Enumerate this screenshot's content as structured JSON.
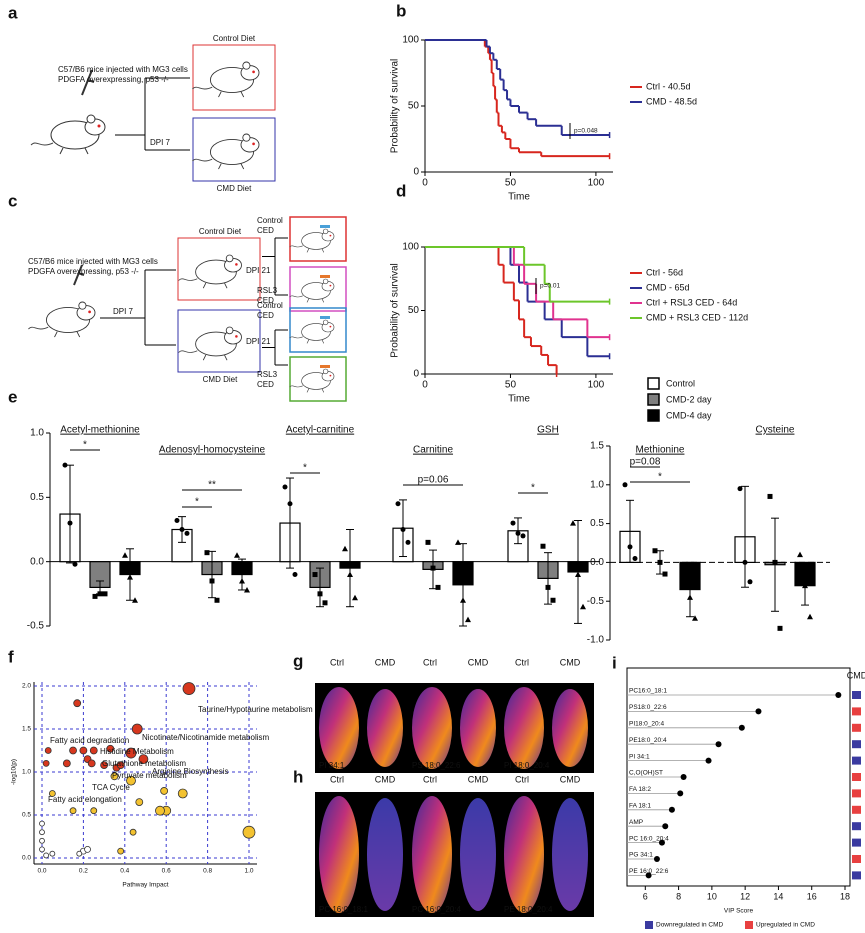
{
  "panel_labels": [
    "a",
    "b",
    "c",
    "d",
    "e",
    "f",
    "g",
    "h",
    "i"
  ],
  "diagram_a": {
    "injection": [
      "C57/B6 mice injected with MG3 cells",
      "PDGFA overexpressing, p53 -/-"
    ],
    "dpi": "DPI 7",
    "diets": [
      "Control Diet",
      "CMD Diet"
    ]
  },
  "diagram_c": {
    "injection": [
      "C57/B6 mice injected with MG3 cells",
      "PDGFA overexpressing, p53 -/-"
    ],
    "dpi": "DPI 7",
    "diets": [
      "Control Diet",
      "CMD Diet"
    ],
    "dpi2": "DPI 21",
    "treatments": [
      [
        "Control",
        "CED"
      ],
      [
        "RSL3",
        "CED"
      ],
      [
        "Control",
        "CED"
      ],
      [
        "RSL3",
        "CED"
      ]
    ]
  },
  "images": {
    "columns": [
      "Ctrl",
      "CMD"
    ],
    "g_labels": [
      "PI 34:1",
      "PS 18:0_22:6",
      "PI 18:0_20:4"
    ],
    "h_labels": [
      "PC 16:0_18:1",
      "PC 16:0_20:4",
      "PE 18:0_20:4"
    ]
  },
  "chart_data": [
    {
      "type": "survival",
      "xlabel": "Time",
      "ylabel": "Probability of survival",
      "xlim": [
        0,
        110
      ],
      "xticks": [
        0,
        50,
        100
      ],
      "ylim": [
        0,
        100
      ],
      "yticks": [
        0,
        50,
        100
      ],
      "series": [
        {
          "name": "Ctrl - 40.5d",
          "color": "#d7261e",
          "x": [
            0,
            35,
            37,
            38,
            39,
            40,
            41,
            42,
            43,
            45,
            47,
            50,
            55,
            68,
            108
          ],
          "values": [
            100,
            95,
            90,
            85,
            75,
            65,
            55,
            45,
            35,
            30,
            25,
            18,
            15,
            12,
            12
          ]
        },
        {
          "name": "CMD - 48.5d",
          "color": "#2b2f93",
          "x": [
            0,
            36,
            38,
            40,
            42,
            44,
            46,
            48,
            50,
            55,
            60,
            65,
            80,
            108
          ],
          "values": [
            100,
            95,
            90,
            85,
            78,
            70,
            62,
            55,
            50,
            45,
            40,
            35,
            28,
            28
          ]
        }
      ],
      "annotations": [
        "p=0.048"
      ]
    },
    {
      "type": "survival",
      "xlabel": "Time",
      "ylabel": "Probability of survival",
      "xlim": [
        0,
        110
      ],
      "xticks": [
        0,
        50,
        100
      ],
      "ylim": [
        0,
        100
      ],
      "yticks": [
        0,
        50,
        100
      ],
      "series": [
        {
          "name": "Ctrl - 56d",
          "color": "#d7261e",
          "x": [
            0,
            43,
            46,
            52,
            55,
            58,
            62,
            68,
            72,
            77
          ],
          "values": [
            100,
            86,
            72,
            58,
            43,
            29,
            22,
            15,
            7,
            0
          ]
        },
        {
          "name": "CMD - 65d",
          "color": "#2b2f93",
          "x": [
            0,
            50,
            55,
            60,
            70,
            80,
            95,
            108
          ],
          "values": [
            100,
            86,
            72,
            57,
            43,
            29,
            14,
            14
          ]
        },
        {
          "name": "Ctrl + RSL3 CED - 64d",
          "color": "#e0338f",
          "x": [
            0,
            52,
            58,
            65,
            75,
            95,
            108
          ],
          "values": [
            100,
            86,
            71,
            57,
            43,
            29,
            29
          ]
        },
        {
          "name": "CMD + RSL3 CED - 112d",
          "color": "#6cc62a",
          "x": [
            0,
            58,
            70,
            73,
            108
          ],
          "values": [
            100,
            86,
            71,
            57,
            57
          ]
        }
      ],
      "annotations": [
        "p=0.01"
      ]
    },
    {
      "type": "bar_group",
      "legend": [
        "Control",
        "CMD-2 day",
        "CMD-4 day"
      ],
      "colors": [
        "#ffffff",
        "#7f7f7f",
        "#000000"
      ],
      "ylim": [
        -0.5,
        1.0
      ],
      "yticks": [
        -0.5,
        {
          "value": 0,
          "label": "0.0"
        },
        0.5,
        {
          "value": 1,
          "label": "1.0"
        }
      ],
      "y2lim": [
        -1.0,
        1.5
      ],
      "y2ticks": [
        {
          "value": -1,
          "label": "-1.0"
        },
        -0.5,
        {
          "value": 0,
          "label": "0.0"
        },
        0.5,
        {
          "value": 1,
          "label": "1.0"
        },
        1.5
      ],
      "groups": [
        {
          "title": "Acetyl-methionine",
          "values": [
            0.37,
            -0.2,
            -0.1
          ],
          "errors": [
            0.38,
            0.05,
            0.2
          ],
          "points": [
            [
              0.75,
              0.3,
              -0.02
            ],
            [
              -0.27,
              -0.25,
              -0.25
            ],
            [
              0.05,
              -0.12,
              -0.3
            ]
          ],
          "annotations": [
            "*"
          ]
        },
        {
          "title": "Adenosyl-homocysteine",
          "values": [
            0.25,
            -0.1,
            -0.1
          ],
          "errors": [
            0.1,
            0.18,
            0.12
          ],
          "points": [
            [
              0.32,
              0.25,
              0.22
            ],
            [
              0.07,
              -0.15,
              -0.3
            ],
            [
              0.05,
              -0.15,
              -0.22
            ]
          ],
          "annotations": [
            "**",
            "*"
          ]
        },
        {
          "title": "Acetyl-carnitine",
          "values": [
            0.3,
            -0.2,
            -0.05
          ],
          "errors": [
            0.35,
            0.15,
            0.3
          ],
          "points": [
            [
              0.58,
              0.45,
              -0.1
            ],
            [
              -0.1,
              -0.25,
              -0.32
            ],
            [
              0.1,
              -0.1,
              -0.28
            ]
          ],
          "annotations": [
            "*"
          ]
        },
        {
          "title": "Carnitine",
          "values": [
            0.26,
            -0.06,
            -0.18
          ],
          "errors": [
            0.22,
            0.15,
            0.32
          ],
          "points": [
            [
              0.45,
              0.25,
              0.15
            ],
            [
              0.15,
              -0.05,
              -0.2
            ],
            [
              0.15,
              -0.3,
              -0.45
            ]
          ],
          "annotations": [
            "p=0.06"
          ]
        },
        {
          "title": "GSH",
          "values": [
            0.24,
            -0.13,
            -0.08
          ],
          "errors": [
            0.1,
            0.2,
            0.4
          ],
          "points": [
            [
              0.3,
              0.22,
              0.2
            ],
            [
              0.12,
              -0.2,
              -0.3
            ],
            [
              0.3,
              -0.1,
              -0.35
            ]
          ],
          "annotations": [
            "*"
          ]
        },
        {
          "title": "Methionine",
          "axis": "y2",
          "values": [
            0.4,
            0,
            -0.35
          ],
          "errors": [
            0.4,
            0.15,
            0.35
          ],
          "points": [
            [
              1.0,
              0.2,
              0.05
            ],
            [
              0.15,
              0.0,
              -0.15
            ],
            [
              -0.15,
              -0.45,
              -0.72
            ]
          ],
          "annotations": [
            "p=0.08",
            "*"
          ]
        },
        {
          "title": "Cysteine",
          "axis": "y2",
          "values": [
            0.33,
            -0.03,
            -0.3
          ],
          "errors": [
            0.65,
            0.6,
            0.25
          ],
          "points": [
            [
              0.95,
              0.0,
              -0.25
            ],
            [
              0.85,
              0.0,
              -0.85
            ],
            [
              0.1,
              -0.3,
              -0.7
            ]
          ],
          "annotations": []
        }
      ]
    },
    {
      "type": "bubble",
      "xlabel": "Pathway Impact",
      "ylabel": "-log10(p)",
      "grid": true,
      "xlim": [
        0,
        1
      ],
      "xticks": [
        {
          "value": 0,
          "label": "0.0"
        },
        0.2,
        0.4,
        0.6,
        0.8,
        {
          "value": 1,
          "label": "1.0"
        }
      ],
      "ylim": [
        0,
        2
      ],
      "yticks": [
        {
          "value": 0,
          "label": "0.0"
        },
        0.5,
        {
          "value": 1,
          "label": "1.0"
        },
        1.5,
        {
          "value": 2,
          "label": "2.0"
        }
      ],
      "series": [
        {
          "color": "#d7371e",
          "x": [
            0.71,
            0.46,
            0.17,
            0.43,
            0.49,
            0.15,
            0.2,
            0.25,
            0.33,
            0.12,
            0.22,
            0.24,
            0.3,
            0.36,
            0.38,
            0.03,
            0.02
          ],
          "values": [
            1.97,
            1.5,
            1.8,
            1.22,
            1.15,
            1.25,
            1.25,
            1.25,
            1.27,
            1.1,
            1.15,
            1.1,
            1.08,
            1.05,
            1.08,
            1.25,
            1.1
          ],
          "sizes": [
            6,
            5,
            3.5,
            5,
            4.5,
            3.5,
            3.5,
            3.5,
            3.5,
            3.5,
            3.5,
            3.5,
            3.5,
            3.5,
            3.5,
            3,
            3
          ]
        },
        {
          "color": "#f3c230",
          "x": [
            0.43,
            0.35,
            0.47,
            0.59,
            0.6,
            0.57,
            0.68,
            1.0,
            0.25,
            0.15,
            0.05,
            0.38,
            0.44
          ],
          "values": [
            0.9,
            0.95,
            0.65,
            0.78,
            0.55,
            0.55,
            0.75,
            0.3,
            0.55,
            0.55,
            0.75,
            0.08,
            0.3
          ],
          "sizes": [
            4.5,
            3.5,
            3.5,
            3.5,
            4.5,
            4.5,
            4.5,
            6,
            3,
            3,
            3,
            3,
            3
          ]
        },
        {
          "color": "#ffffff",
          "x": [
            0.0,
            0.0,
            0.0,
            0.0,
            0.02,
            0.05,
            0.2,
            0.22,
            0.18
          ],
          "values": [
            0.4,
            0.3,
            0.2,
            0.1,
            0.03,
            0.05,
            0.08,
            0.1,
            0.05
          ],
          "sizes": [
            2.5,
            2.5,
            2.5,
            2.5,
            2.5,
            2.5,
            3,
            3,
            2.5
          ]
        }
      ],
      "annotations": [
        "Taurine/Hypotaurine metabolism",
        "Nicotinate/Nicotinamide metabolism",
        "Histidine Metabolism",
        "Glutathione metabolism",
        "Arginine Biosynthesis",
        "Pyruvate metabolism",
        "TCA Cycle",
        "Fatty acid degradation",
        "Fatty acid elongation"
      ]
    },
    {
      "type": "dot",
      "categories": [
        "PC16:0_18:1",
        "PS18:0_22:6",
        "PI18:0_20:4",
        "PE18:0_20:4",
        "PI 34:1",
        "C,O(OH)ST",
        "FA 18:2",
        "FA 18:1",
        "AMP",
        "PC 16:0_20:4",
        "PG 34:1",
        "PE 16:0_22:6"
      ],
      "values": [
        17.6,
        12.8,
        11.8,
        10.4,
        9.8,
        8.3,
        8.1,
        7.6,
        7.2,
        7.0,
        6.7,
        6.2
      ],
      "xlim": [
        4.9,
        18.3
      ],
      "xticks": [
        6,
        8,
        10,
        12,
        14,
        16,
        18
      ],
      "xlabel": "VIP Score",
      "group_title": "CMD",
      "legend": [
        "Downregulated in CMD",
        "Upregulated in CMD"
      ],
      "legend_colors": [
        "#3a3aa0",
        "#e84040"
      ],
      "groups": [
        0,
        1,
        1,
        0,
        0,
        1,
        1,
        1,
        0,
        0,
        1,
        0
      ]
    }
  ]
}
